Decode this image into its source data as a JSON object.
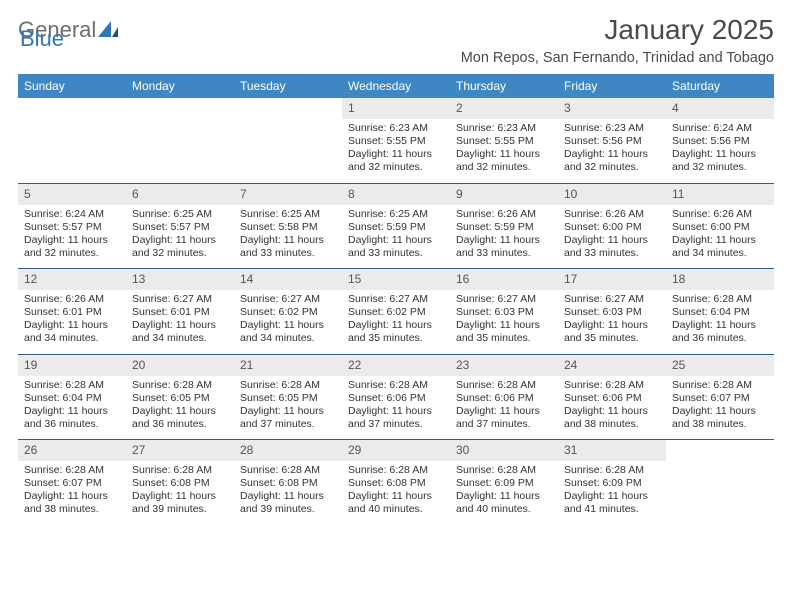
{
  "brand": {
    "part1": "General",
    "part2": "Blue"
  },
  "title": "January 2025",
  "location": "Mon Repos, San Fernando, Trinidad and Tobago",
  "colors": {
    "header_bg": "#3e87c3",
    "header_fg": "#ffffff",
    "daynum_bg": "#ebebeb",
    "rule": "#2e5e89",
    "brand_gray": "#6d6d6d",
    "brand_blue": "#2f77b5"
  },
  "dow": [
    "Sunday",
    "Monday",
    "Tuesday",
    "Wednesday",
    "Thursday",
    "Friday",
    "Saturday"
  ],
  "weeks": [
    [
      {
        "n": "",
        "sr": "",
        "ss": "",
        "dl": ""
      },
      {
        "n": "",
        "sr": "",
        "ss": "",
        "dl": ""
      },
      {
        "n": "",
        "sr": "",
        "ss": "",
        "dl": ""
      },
      {
        "n": "1",
        "sr": "Sunrise: 6:23 AM",
        "ss": "Sunset: 5:55 PM",
        "dl": "Daylight: 11 hours and 32 minutes."
      },
      {
        "n": "2",
        "sr": "Sunrise: 6:23 AM",
        "ss": "Sunset: 5:55 PM",
        "dl": "Daylight: 11 hours and 32 minutes."
      },
      {
        "n": "3",
        "sr": "Sunrise: 6:23 AM",
        "ss": "Sunset: 5:56 PM",
        "dl": "Daylight: 11 hours and 32 minutes."
      },
      {
        "n": "4",
        "sr": "Sunrise: 6:24 AM",
        "ss": "Sunset: 5:56 PM",
        "dl": "Daylight: 11 hours and 32 minutes."
      }
    ],
    [
      {
        "n": "5",
        "sr": "Sunrise: 6:24 AM",
        "ss": "Sunset: 5:57 PM",
        "dl": "Daylight: 11 hours and 32 minutes."
      },
      {
        "n": "6",
        "sr": "Sunrise: 6:25 AM",
        "ss": "Sunset: 5:57 PM",
        "dl": "Daylight: 11 hours and 32 minutes."
      },
      {
        "n": "7",
        "sr": "Sunrise: 6:25 AM",
        "ss": "Sunset: 5:58 PM",
        "dl": "Daylight: 11 hours and 33 minutes."
      },
      {
        "n": "8",
        "sr": "Sunrise: 6:25 AM",
        "ss": "Sunset: 5:59 PM",
        "dl": "Daylight: 11 hours and 33 minutes."
      },
      {
        "n": "9",
        "sr": "Sunrise: 6:26 AM",
        "ss": "Sunset: 5:59 PM",
        "dl": "Daylight: 11 hours and 33 minutes."
      },
      {
        "n": "10",
        "sr": "Sunrise: 6:26 AM",
        "ss": "Sunset: 6:00 PM",
        "dl": "Daylight: 11 hours and 33 minutes."
      },
      {
        "n": "11",
        "sr": "Sunrise: 6:26 AM",
        "ss": "Sunset: 6:00 PM",
        "dl": "Daylight: 11 hours and 34 minutes."
      }
    ],
    [
      {
        "n": "12",
        "sr": "Sunrise: 6:26 AM",
        "ss": "Sunset: 6:01 PM",
        "dl": "Daylight: 11 hours and 34 minutes."
      },
      {
        "n": "13",
        "sr": "Sunrise: 6:27 AM",
        "ss": "Sunset: 6:01 PM",
        "dl": "Daylight: 11 hours and 34 minutes."
      },
      {
        "n": "14",
        "sr": "Sunrise: 6:27 AM",
        "ss": "Sunset: 6:02 PM",
        "dl": "Daylight: 11 hours and 34 minutes."
      },
      {
        "n": "15",
        "sr": "Sunrise: 6:27 AM",
        "ss": "Sunset: 6:02 PM",
        "dl": "Daylight: 11 hours and 35 minutes."
      },
      {
        "n": "16",
        "sr": "Sunrise: 6:27 AM",
        "ss": "Sunset: 6:03 PM",
        "dl": "Daylight: 11 hours and 35 minutes."
      },
      {
        "n": "17",
        "sr": "Sunrise: 6:27 AM",
        "ss": "Sunset: 6:03 PM",
        "dl": "Daylight: 11 hours and 35 minutes."
      },
      {
        "n": "18",
        "sr": "Sunrise: 6:28 AM",
        "ss": "Sunset: 6:04 PM",
        "dl": "Daylight: 11 hours and 36 minutes."
      }
    ],
    [
      {
        "n": "19",
        "sr": "Sunrise: 6:28 AM",
        "ss": "Sunset: 6:04 PM",
        "dl": "Daylight: 11 hours and 36 minutes."
      },
      {
        "n": "20",
        "sr": "Sunrise: 6:28 AM",
        "ss": "Sunset: 6:05 PM",
        "dl": "Daylight: 11 hours and 36 minutes."
      },
      {
        "n": "21",
        "sr": "Sunrise: 6:28 AM",
        "ss": "Sunset: 6:05 PM",
        "dl": "Daylight: 11 hours and 37 minutes."
      },
      {
        "n": "22",
        "sr": "Sunrise: 6:28 AM",
        "ss": "Sunset: 6:06 PM",
        "dl": "Daylight: 11 hours and 37 minutes."
      },
      {
        "n": "23",
        "sr": "Sunrise: 6:28 AM",
        "ss": "Sunset: 6:06 PM",
        "dl": "Daylight: 11 hours and 37 minutes."
      },
      {
        "n": "24",
        "sr": "Sunrise: 6:28 AM",
        "ss": "Sunset: 6:06 PM",
        "dl": "Daylight: 11 hours and 38 minutes."
      },
      {
        "n": "25",
        "sr": "Sunrise: 6:28 AM",
        "ss": "Sunset: 6:07 PM",
        "dl": "Daylight: 11 hours and 38 minutes."
      }
    ],
    [
      {
        "n": "26",
        "sr": "Sunrise: 6:28 AM",
        "ss": "Sunset: 6:07 PM",
        "dl": "Daylight: 11 hours and 38 minutes."
      },
      {
        "n": "27",
        "sr": "Sunrise: 6:28 AM",
        "ss": "Sunset: 6:08 PM",
        "dl": "Daylight: 11 hours and 39 minutes."
      },
      {
        "n": "28",
        "sr": "Sunrise: 6:28 AM",
        "ss": "Sunset: 6:08 PM",
        "dl": "Daylight: 11 hours and 39 minutes."
      },
      {
        "n": "29",
        "sr": "Sunrise: 6:28 AM",
        "ss": "Sunset: 6:08 PM",
        "dl": "Daylight: 11 hours and 40 minutes."
      },
      {
        "n": "30",
        "sr": "Sunrise: 6:28 AM",
        "ss": "Sunset: 6:09 PM",
        "dl": "Daylight: 11 hours and 40 minutes."
      },
      {
        "n": "31",
        "sr": "Sunrise: 6:28 AM",
        "ss": "Sunset: 6:09 PM",
        "dl": "Daylight: 11 hours and 41 minutes."
      },
      {
        "n": "",
        "sr": "",
        "ss": "",
        "dl": ""
      }
    ]
  ]
}
